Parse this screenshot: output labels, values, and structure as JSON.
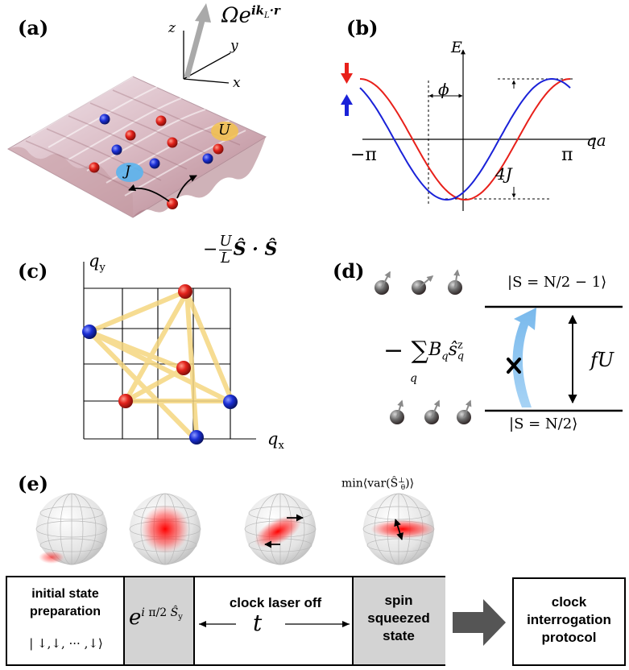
{
  "panels": {
    "a": {
      "label": "(a)",
      "drive": "Ωe",
      "drive_exp": "ik",
      "drive_exp_sub": "L",
      "drive_exp_tail": "·r",
      "axes": {
        "z": "z",
        "y": "y",
        "x": "x"
      },
      "U": "U",
      "J": "J"
    },
    "b": {
      "label": "(b)",
      "E": "E",
      "qa": "qa",
      "neg_pi": "−π",
      "pi": "π",
      "phi": "ϕ",
      "fourJ": "4J",
      "colors": {
        "down": "#e8201a",
        "up": "#1a22d8"
      }
    },
    "c": {
      "label": "(c)",
      "hamiltonian": "−",
      "U": "U",
      "L": "L",
      "SS": "Ŝ · Ŝ",
      "qy": "q",
      "qy_sub": "y",
      "qx": "q",
      "qx_sub": "x"
    },
    "d": {
      "label": "(d)",
      "sum_expr": "− ∑",
      "sum_sub": "q",
      "B": "B",
      "B_sub": "q",
      "s": "ŝ",
      "s_sup": "z",
      "s_sub": "q",
      "upper_state": "|S = N/2 − 1⟩",
      "lower_state": "|S = N/2⟩",
      "gap": "fU"
    },
    "e": {
      "label": "(e)",
      "min_var": "min⟨var(Ŝ",
      "min_var_sup": "⊥",
      "min_var_sub": "θ",
      "min_var_tail": ")⟩"
    }
  },
  "protocol": {
    "initial": {
      "line1": "initial state",
      "line2": "preparation",
      "ket": "| ↓,↓, ··· ,↓⟩"
    },
    "rotation": {
      "base": "e",
      "exp": "i",
      "frac": "π/2",
      "op": "Ŝ",
      "op_sub": "y"
    },
    "laser_off": "clock laser off",
    "t": "t",
    "squeezed": {
      "line1": "spin",
      "line2": "squeezed",
      "line3": "state"
    },
    "clock": {
      "line1": "clock",
      "line2": "interrogation",
      "line3": "protocol"
    }
  }
}
